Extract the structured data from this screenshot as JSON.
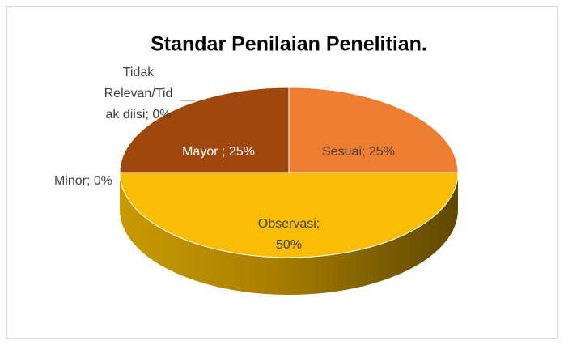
{
  "chart_data": {
    "type": "pie3d",
    "title": "Standar Penilaian Penelitian.",
    "categories": [
      "Sesuai",
      "Observasi",
      "Minor",
      "Mayor ",
      "Tidak Relevan/Tidak diisi"
    ],
    "values": [
      25,
      50,
      0,
      25,
      0
    ],
    "value_labels": [
      "Sesuai; 25%",
      "Observasi;\n50%",
      "Minor; 0%",
      "Mayor ; 25%",
      "Tidak\nRelevan/Tid\nak diisi; 0%"
    ],
    "colors": [
      "#ED7D31",
      "#FBBC04",
      "#A5A5A5",
      "#9E480E",
      "#5B9BD5"
    ]
  }
}
